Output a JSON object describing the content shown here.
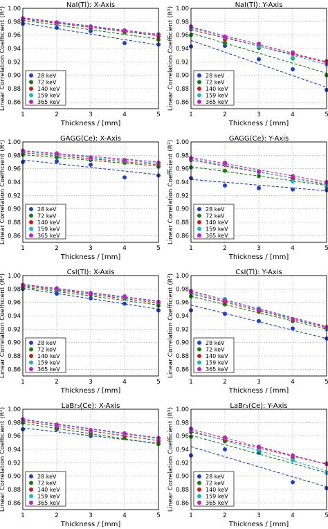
{
  "legend": {
    "entries": [
      {
        "label": "28 keV",
        "color": "#1f3fcc"
      },
      {
        "label": "72 keV",
        "color": "#1a7a1a"
      },
      {
        "label": "140 keV",
        "color": "#cc1a1a"
      },
      {
        "label": "159 keV",
        "color": "#22b4c0"
      },
      {
        "label": "365 keV",
        "color": "#c020c0"
      }
    ],
    "placement": "lower-left"
  },
  "axes": {
    "xlabel": "Thickness / [mm]",
    "ylabel": "Linear Correlation Coefficient (R²)",
    "xticks": [
      "1",
      "2",
      "3",
      "4",
      "5"
    ],
    "yticks": [
      "0.86",
      "0.88",
      "0.90",
      "0.92",
      "0.94",
      "0.96",
      "0.98",
      "1.00"
    ],
    "xlim": [
      1,
      5
    ],
    "ylim": [
      0.85,
      1.0
    ],
    "grid": true
  },
  "chart_data": [
    {
      "type": "scatter",
      "title": "NaI(Tl): X-Axis",
      "xlabel": "Thickness / [mm]",
      "ylabel": "Linear Correlation Coefficient (R²)",
      "x": [
        1,
        2,
        3,
        4,
        5
      ],
      "xlim": [
        1,
        5
      ],
      "ylim": [
        0.85,
        1.0
      ],
      "grid": true,
      "legend": "lower-left",
      "series": [
        {
          "name": "28 keV",
          "color": "#1f3fcc",
          "values": [
            0.977,
            0.971,
            0.966,
            0.948,
            0.946
          ],
          "fit": [
            0.978,
            0.945
          ]
        },
        {
          "name": "72 keV",
          "color": "#1a7a1a",
          "values": [
            0.982,
            0.977,
            0.97,
            0.964,
            0.953
          ],
          "fit": [
            0.982,
            0.954
          ]
        },
        {
          "name": "140 keV",
          "color": "#cc1a1a",
          "values": [
            0.984,
            0.978,
            0.972,
            0.966,
            0.958
          ],
          "fit": [
            0.984,
            0.959
          ]
        },
        {
          "name": "159 keV",
          "color": "#22b4c0",
          "values": [
            0.985,
            0.978,
            0.973,
            0.967,
            0.961
          ],
          "fit": [
            0.985,
            0.96
          ]
        },
        {
          "name": "365 keV",
          "color": "#c020c0",
          "values": [
            0.985,
            0.979,
            0.973,
            0.967,
            0.961
          ],
          "fit": [
            0.986,
            0.961
          ]
        }
      ]
    },
    {
      "type": "scatter",
      "title": "NaI(Tl): Y-Axis",
      "xlabel": "Thickness / [mm]",
      "ylabel": "Linear Correlation Coefficient (R²)",
      "x": [
        1,
        2,
        3,
        4,
        5
      ],
      "xlim": [
        1,
        5
      ],
      "ylim": [
        0.85,
        1.0
      ],
      "grid": true,
      "legend": "lower-left",
      "series": [
        {
          "name": "28 keV",
          "color": "#1f3fcc",
          "values": [
            0.943,
            0.944,
            0.924,
            0.909,
            0.878
          ],
          "fit": [
            0.952,
            0.882
          ]
        },
        {
          "name": "72 keV",
          "color": "#1a7a1a",
          "values": [
            0.96,
            0.948,
            0.941,
            0.925,
            0.9
          ],
          "fit": [
            0.963,
            0.903
          ]
        },
        {
          "name": "140 keV",
          "color": "#cc1a1a",
          "values": [
            0.969,
            0.953,
            0.943,
            0.932,
            0.921
          ],
          "fit": [
            0.968,
            0.919
          ]
        },
        {
          "name": "159 keV",
          "color": "#22b4c0",
          "values": [
            0.97,
            0.957,
            0.943,
            0.926,
            0.916
          ],
          "fit": [
            0.971,
            0.916
          ]
        },
        {
          "name": "365 keV",
          "color": "#c020c0",
          "values": [
            0.973,
            0.958,
            0.947,
            0.934,
            0.918
          ],
          "fit": [
            0.972,
            0.92
          ]
        }
      ]
    },
    {
      "type": "scatter",
      "title": "GAGG(Ce): X-Axis",
      "xlabel": "Thickness / [mm]",
      "ylabel": "Linear Correlation Coefficient (R²)",
      "x": [
        1,
        2,
        3,
        4,
        5
      ],
      "xlim": [
        1,
        5
      ],
      "ylim": [
        0.85,
        1.0
      ],
      "grid": true,
      "legend": "lower-left",
      "series": [
        {
          "name": "28 keV",
          "color": "#1f3fcc",
          "values": [
            0.97,
            0.971,
            0.966,
            0.947,
            0.95
          ],
          "fit": [
            0.973,
            0.951
          ]
        },
        {
          "name": "72 keV",
          "color": "#1a7a1a",
          "values": [
            0.981,
            0.977,
            0.973,
            0.969,
            0.963
          ],
          "fit": [
            0.981,
            0.964
          ]
        },
        {
          "name": "140 keV",
          "color": "#cc1a1a",
          "values": [
            0.985,
            0.981,
            0.975,
            0.971,
            0.966
          ],
          "fit": [
            0.984,
            0.966
          ]
        },
        {
          "name": "159 keV",
          "color": "#22b4c0",
          "values": [
            0.986,
            0.982,
            0.976,
            0.972,
            0.968
          ],
          "fit": [
            0.986,
            0.968
          ]
        },
        {
          "name": "365 keV",
          "color": "#c020c0",
          "values": [
            0.987,
            0.983,
            0.977,
            0.973,
            0.969
          ],
          "fit": [
            0.987,
            0.97
          ]
        }
      ]
    },
    {
      "type": "scatter",
      "title": "GAGG(Ce): Y-Axis",
      "xlabel": "Thickness / [mm]",
      "ylabel": "Linear Correlation Coefficient (R²)",
      "x": [
        1,
        2,
        3,
        4,
        5
      ],
      "xlim": [
        1,
        5
      ],
      "ylim": [
        0.85,
        1.0
      ],
      "grid": true,
      "legend": "lower-left",
      "series": [
        {
          "name": "28 keV",
          "color": "#1f3fcc",
          "values": [
            0.946,
            0.935,
            0.931,
            0.929,
            0.928
          ],
          "fit": [
            0.944,
            0.927
          ]
        },
        {
          "name": "72 keV",
          "color": "#1a7a1a",
          "values": [
            0.962,
            0.957,
            0.949,
            0.943,
            0.933
          ],
          "fit": [
            0.963,
            0.935
          ]
        },
        {
          "name": "140 keV",
          "color": "#cc1a1a",
          "values": [
            0.973,
            0.966,
            0.955,
            0.946,
            0.937
          ],
          "fit": [
            0.973,
            0.937
          ]
        },
        {
          "name": "159 keV",
          "color": "#22b4c0",
          "values": [
            0.974,
            0.967,
            0.955,
            0.941,
            0.935
          ],
          "fit": [
            0.975,
            0.936
          ]
        },
        {
          "name": "365 keV",
          "color": "#c020c0",
          "values": [
            0.976,
            0.969,
            0.956,
            0.949,
            0.94
          ],
          "fit": [
            0.977,
            0.94
          ]
        }
      ]
    },
    {
      "type": "scatter",
      "title": "CsI(Tl): X-Axis",
      "xlabel": "Thickness / [mm]",
      "ylabel": "Linear Correlation Coefficient (R²)",
      "x": [
        1,
        2,
        3,
        4,
        5
      ],
      "xlim": [
        1,
        5
      ],
      "ylim": [
        0.85,
        1.0
      ],
      "grid": true,
      "legend": "lower-left",
      "series": [
        {
          "name": "28 keV",
          "color": "#1f3fcc",
          "values": [
            0.98,
            0.973,
            0.966,
            0.958,
            0.948
          ],
          "fit": [
            0.981,
            0.95
          ]
        },
        {
          "name": "72 keV",
          "color": "#1a7a1a",
          "values": [
            0.983,
            0.978,
            0.972,
            0.966,
            0.955
          ],
          "fit": [
            0.983,
            0.956
          ]
        },
        {
          "name": "140 keV",
          "color": "#cc1a1a",
          "values": [
            0.985,
            0.98,
            0.973,
            0.968,
            0.959
          ],
          "fit": [
            0.985,
            0.959
          ]
        },
        {
          "name": "159 keV",
          "color": "#22b4c0",
          "values": [
            0.986,
            0.98,
            0.974,
            0.968,
            0.96
          ],
          "fit": [
            0.986,
            0.961
          ]
        },
        {
          "name": "365 keV",
          "color": "#c020c0",
          "values": [
            0.986,
            0.981,
            0.974,
            0.969,
            0.961
          ],
          "fit": [
            0.987,
            0.962
          ]
        }
      ]
    },
    {
      "type": "scatter",
      "title": "CsI(Tl): Y-Axis",
      "xlabel": "Thickness / [mm]",
      "ylabel": "Linear Correlation Coefficient (R²)",
      "x": [
        1,
        2,
        3,
        4,
        5
      ],
      "xlim": [
        1,
        5
      ],
      "ylim": [
        0.85,
        1.0
      ],
      "grid": true,
      "legend": "lower-left",
      "series": [
        {
          "name": "28 keV",
          "color": "#1f3fcc",
          "values": [
            0.948,
            0.943,
            0.932,
            0.921,
            0.906
          ],
          "fit": [
            0.956,
            0.906
          ]
        },
        {
          "name": "72 keV",
          "color": "#1a7a1a",
          "values": [
            0.969,
            0.957,
            0.946,
            0.932,
            0.92
          ],
          "fit": [
            0.969,
            0.92
          ]
        },
        {
          "name": "140 keV",
          "color": "#cc1a1a",
          "values": [
            0.974,
            0.961,
            0.948,
            0.934,
            0.922
          ],
          "fit": [
            0.973,
            0.922
          ]
        },
        {
          "name": "159 keV",
          "color": "#22b4c0",
          "values": [
            0.975,
            0.965,
            0.951,
            0.935,
            0.921
          ],
          "fit": [
            0.975,
            0.923
          ]
        },
        {
          "name": "365 keV",
          "color": "#c020c0",
          "values": [
            0.977,
            0.963,
            0.949,
            0.935,
            0.923
          ],
          "fit": [
            0.977,
            0.924
          ]
        }
      ]
    },
    {
      "type": "scatter",
      "title": "LaBr₃(Ce): X-Axis",
      "xlabel": "Thickness / [mm]",
      "ylabel": "Linear Correlation Coefficient (R²)",
      "x": [
        1,
        2,
        3,
        4,
        5
      ],
      "xlim": [
        1,
        5
      ],
      "ylim": [
        0.85,
        1.0
      ],
      "grid": true,
      "legend": "lower-left",
      "series": [
        {
          "name": "28 keV",
          "color": "#1f3fcc",
          "values": [
            0.97,
            0.97,
            0.96,
            0.957,
            0.949
          ],
          "fit": [
            0.972,
            0.949
          ]
        },
        {
          "name": "72 keV",
          "color": "#1a7a1a",
          "values": [
            0.98,
            0.972,
            0.963,
            0.957,
            0.948
          ],
          "fit": [
            0.979,
            0.948
          ]
        },
        {
          "name": "140 keV",
          "color": "#cc1a1a",
          "values": [
            0.983,
            0.974,
            0.966,
            0.96,
            0.953
          ],
          "fit": [
            0.982,
            0.953
          ]
        },
        {
          "name": "159 keV",
          "color": "#22b4c0",
          "values": [
            0.984,
            0.976,
            0.968,
            0.963,
            0.956
          ],
          "fit": [
            0.984,
            0.956
          ]
        },
        {
          "name": "365 keV",
          "color": "#c020c0",
          "values": [
            0.985,
            0.977,
            0.969,
            0.964,
            0.957
          ],
          "fit": [
            0.985,
            0.957
          ]
        }
      ]
    },
    {
      "type": "scatter",
      "title": "LaBr₃(Ce): Y-Axis",
      "xlabel": "Thickness / [mm]",
      "ylabel": "Linear Correlation Coefficient (R²)",
      "x": [
        1,
        2,
        3,
        4,
        5
      ],
      "xlim": [
        1,
        5
      ],
      "ylim": [
        0.85,
        1.0
      ],
      "grid": true,
      "legend": "lower-left",
      "series": [
        {
          "name": "28 keV",
          "color": "#1f3fcc",
          "values": [
            0.931,
            0.94,
            0.935,
            0.891,
            0.882
          ],
          "fit": [
            0.944,
            0.884
          ]
        },
        {
          "name": "72 keV",
          "color": "#1a7a1a",
          "values": [
            0.959,
            0.952,
            0.937,
            0.927,
            0.905
          ],
          "fit": [
            0.961,
            0.905
          ]
        },
        {
          "name": "140 keV",
          "color": "#cc1a1a",
          "values": [
            0.966,
            0.955,
            0.942,
            0.93,
            0.918
          ],
          "fit": [
            0.966,
            0.918
          ]
        },
        {
          "name": "159 keV",
          "color": "#22b4c0",
          "values": [
            0.968,
            0.957,
            0.939,
            0.924,
            0.905
          ],
          "fit": [
            0.968,
            0.908
          ]
        },
        {
          "name": "365 keV",
          "color": "#c020c0",
          "values": [
            0.971,
            0.958,
            0.944,
            0.931,
            0.919
          ],
          "fit": [
            0.97,
            0.918
          ]
        }
      ]
    }
  ]
}
